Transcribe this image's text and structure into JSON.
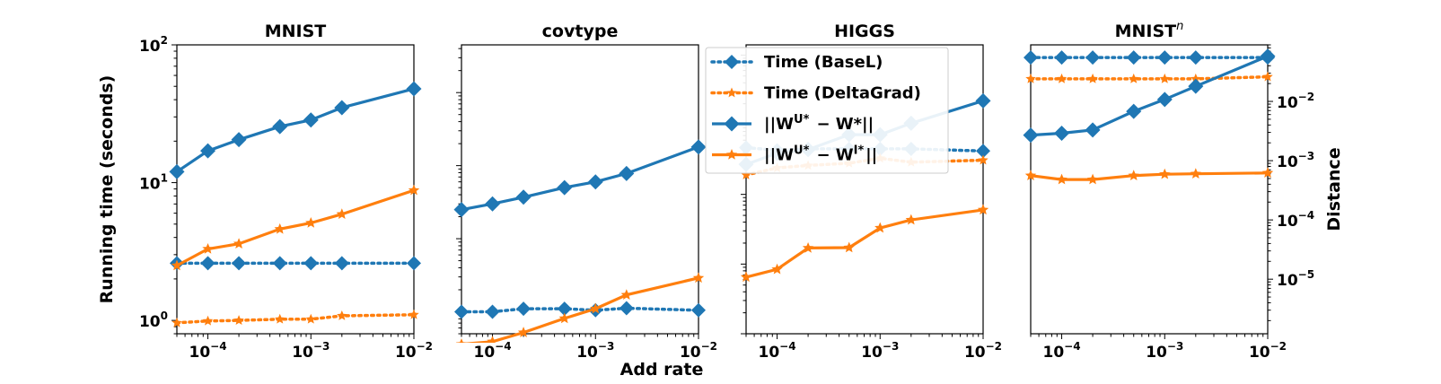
{
  "figure": {
    "xlabel": "Add rate",
    "ylabel_left": "Running time (seconds)",
    "ylabel_right": "Distance"
  },
  "legend": {
    "placement": "upper-center over third panel",
    "entries": [
      {
        "label": "Time (BaseL)",
        "color": "#1f77b4",
        "style": "dotted",
        "marker": "diamond"
      },
      {
        "label": "Time (DeltaGrad)",
        "color": "#ff7f0e",
        "style": "dotted",
        "marker": "star"
      },
      {
        "label": "||W^U* − W*||",
        "color": "#1f77b4",
        "style": "solid",
        "marker": "diamond"
      },
      {
        "label": "||W^U* − W^I*||",
        "color": "#ff7f0e",
        "style": "solid",
        "marker": "star"
      }
    ]
  },
  "chart_data": [
    {
      "type": "line",
      "title": "MNIST",
      "x_scale": "log",
      "xlim": [
        5e-05,
        0.01
      ],
      "x_ticks": [
        "10^-4",
        "10^-3",
        "10^-2"
      ],
      "y_scale": "log",
      "ylim": [
        0.8,
        100
      ],
      "y_ticks": [
        "10^0",
        "10^1",
        "10^2"
      ],
      "x": [
        5e-05,
        0.0001,
        0.0002,
        0.0005,
        0.001,
        0.002,
        0.01
      ],
      "series": [
        {
          "name": "Time (BaseL)",
          "axis": "left",
          "values": [
            2.6,
            2.6,
            2.6,
            2.6,
            2.6,
            2.6,
            2.6
          ]
        },
        {
          "name": "Time (DeltaGrad)",
          "axis": "left",
          "values": [
            0.96,
            0.99,
            1.0,
            1.02,
            1.02,
            1.08,
            1.1
          ]
        },
        {
          "name": "||W^U* − W*||",
          "axis": "left",
          "values": [
            12,
            17,
            20.5,
            25.5,
            28.5,
            35,
            48
          ]
        },
        {
          "name": "||W^U* − W^I*||",
          "axis": "left",
          "values": [
            2.5,
            3.3,
            3.6,
            4.6,
            5.1,
            5.9,
            8.8
          ]
        }
      ]
    },
    {
      "type": "line",
      "title": "covtype",
      "x_scale": "log",
      "xlim": [
        5e-05,
        0.01
      ],
      "x_ticks": [
        "10^-4",
        "10^-3",
        "10^-2"
      ],
      "y_scale": "log",
      "ylim": [
        5e-05,
        0.45
      ],
      "x": [
        5e-05,
        0.0001,
        0.0002,
        0.0005,
        0.001,
        0.002,
        0.01
      ],
      "series": [
        {
          "name": "Time (BaseL)",
          "axis": "left",
          "values": [
            0.0001,
            0.0001,
            0.00011,
            0.00011,
            0.000105,
            0.000112,
            0.000105
          ]
        },
        {
          "name": "Time (DeltaGrad)",
          "axis": "left",
          "values": [
            2.4e-05,
            2.2e-05,
            2.5e-05,
            3.1e-05,
            2.9e-05,
            2.6e-05,
            2.8e-05
          ]
        },
        {
          "name": "||W^U* − W*||",
          "axis": "left",
          "values": [
            0.0025,
            0.003,
            0.0037,
            0.005,
            0.006,
            0.0078,
            0.018
          ]
        },
        {
          "name": "||W^U* − W^I*||",
          "axis": "left",
          "values": [
            3.6e-05,
            3.9e-05,
            5.2e-05,
            8.1e-05,
            0.00011,
            0.00017,
            0.00029
          ]
        }
      ]
    },
    {
      "type": "line",
      "title": "HIGGS",
      "x_scale": "log",
      "xlim": [
        5e-05,
        0.01
      ],
      "x_ticks": [
        "10^-4",
        "10^-3",
        "10^-2"
      ],
      "y_scale": "log",
      "ylim": [
        1e-06,
        0.014
      ],
      "x": [
        5e-05,
        0.0001,
        0.0002,
        0.0005,
        0.001,
        0.002,
        0.01
      ],
      "series": [
        {
          "name": "Time (BaseL)",
          "axis": "left",
          "values": [
            0.00047,
            0.00043,
            0.00045,
            0.00045,
            0.00045,
            0.00045,
            0.00042
          ]
        },
        {
          "name": "Time (DeltaGrad)",
          "axis": "left",
          "values": [
            0.00019,
            0.00024,
            0.00026,
            0.00028,
            0.00033,
            0.00029,
            0.00031
          ]
        },
        {
          "name": "||W^U* − W*||",
          "axis": "left",
          "values": [
            0.00027,
            0.00039,
            0.00044,
            0.00072,
            0.00072,
            0.00105,
            0.0022
          ]
        },
        {
          "name": "||W^U* − W^I*||",
          "axis": "left",
          "values": [
            6.5e-06,
            8.4e-06,
            1.7e-05,
            1.72e-05,
            3.3e-05,
            4.3e-05,
            6e-05
          ]
        }
      ]
    },
    {
      "type": "line",
      "title": "MNIST",
      "title_sup": "n",
      "x_scale": "log",
      "xlim": [
        5e-05,
        0.01
      ],
      "x_ticks": [
        "10^-4",
        "10^-3",
        "10^-2"
      ],
      "y_scale": "log",
      "ylim": [
        1.2e-06,
        0.09
      ],
      "y_ticks_right": [
        "10^-5",
        "10^-4",
        "10^-3",
        "10^-2"
      ],
      "x": [
        5e-05,
        0.0001,
        0.0002,
        0.0005,
        0.001,
        0.002,
        0.01
      ],
      "series": [
        {
          "name": "Time (BaseL)",
          "axis": "right",
          "values": [
            0.055,
            0.055,
            0.055,
            0.055,
            0.055,
            0.055,
            0.055
          ]
        },
        {
          "name": "Time (DeltaGrad)",
          "axis": "right",
          "values": [
            0.024,
            0.024,
            0.024,
            0.024,
            0.024,
            0.024,
            0.026
          ]
        },
        {
          "name": "||W^U* − W*||",
          "axis": "right",
          "values": [
            0.0027,
            0.0029,
            0.0033,
            0.0068,
            0.0108,
            0.018,
            0.058
          ]
        },
        {
          "name": "||W^U* − W^I*||",
          "axis": "right",
          "values": [
            0.00056,
            0.00048,
            0.00048,
            0.00056,
            0.00059,
            0.0006,
            0.00062
          ]
        }
      ]
    }
  ]
}
